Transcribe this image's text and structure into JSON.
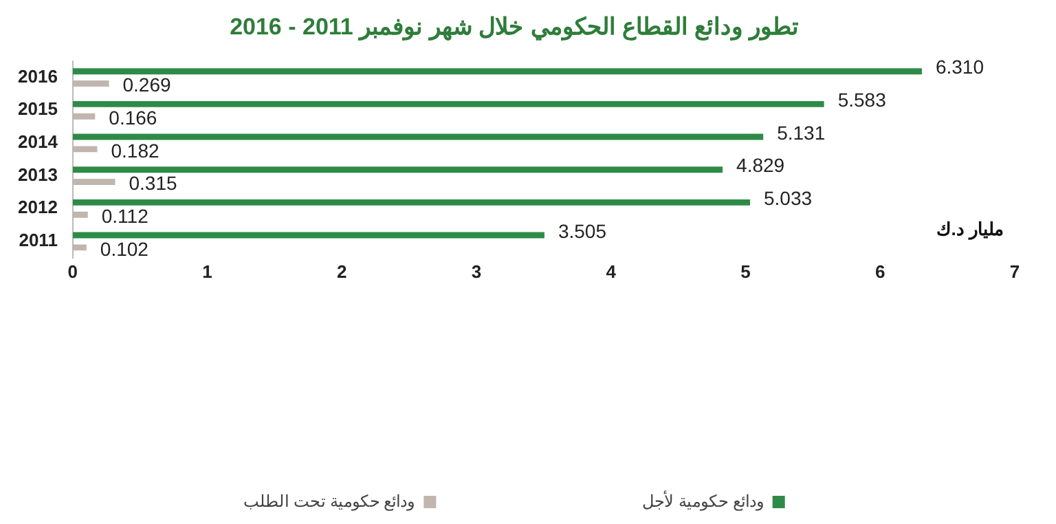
{
  "chart_data": {
    "type": "bar",
    "orientation": "horizontal",
    "title": "تطور ودائع القطاع الحكومي خلال شهر نوفمبر 2011 - 2016",
    "categories": [
      "2016",
      "2015",
      "2014",
      "2013",
      "2012",
      "2011"
    ],
    "series": [
      {
        "name": "ودائع حكومية لأجل",
        "color": "#2e8b47",
        "values": [
          6.31,
          5.583,
          5.131,
          4.829,
          5.033,
          3.505
        ],
        "value_labels": [
          "6.310",
          "5.583",
          "5.131",
          "4.829",
          "5.033",
          "3.505"
        ]
      },
      {
        "name": "ودائع حكومية تحت الطلب",
        "color": "#c0b6af",
        "values": [
          0.269,
          0.166,
          0.182,
          0.315,
          0.112,
          0.102
        ],
        "value_labels": [
          "0.269",
          "0.166",
          "0.182",
          "0.315",
          "0.112",
          "0.102"
        ]
      }
    ],
    "xlim": [
      0,
      7
    ],
    "xticks": [
      0,
      1,
      2,
      3,
      4,
      5,
      6,
      7
    ],
    "grid": false,
    "legend": "bottom",
    "annotations": [
      "مليار د.ك"
    ]
  }
}
